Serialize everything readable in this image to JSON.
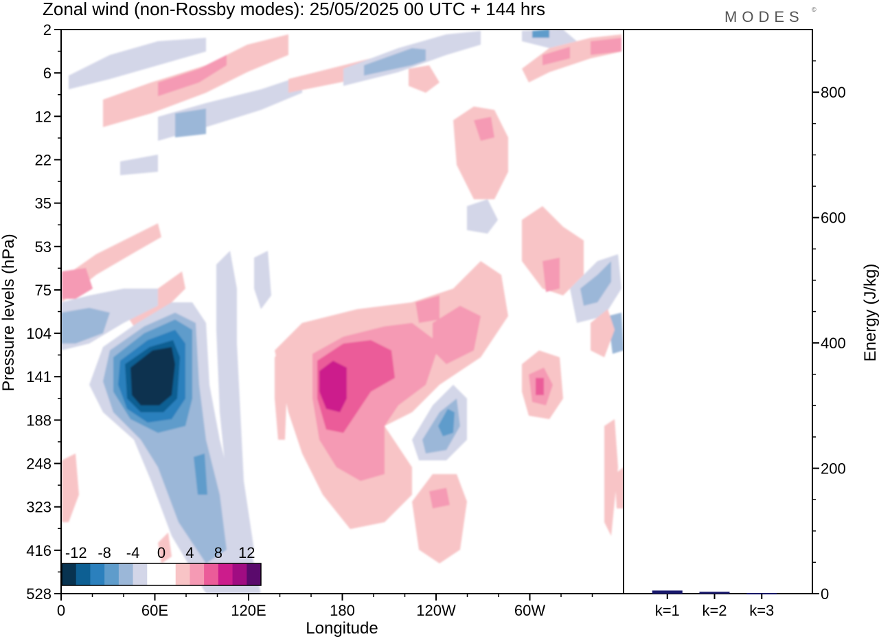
{
  "title": "Zonal wind (non-Rossby modes):  25/05/2025  00 UTC  + 144 hrs",
  "brand": "MODES",
  "brand_mark": "©",
  "chart_data": [
    {
      "type": "heatmap",
      "xlabel": "Longitude",
      "ylabel": "Pressure levels (hPa)",
      "x_ticks": [
        "0",
        "60E",
        "120E",
        "180",
        "120W",
        "60W"
      ],
      "y_ticks": [
        "2",
        "6",
        "12",
        "22",
        "35",
        "53",
        "75",
        "104",
        "141",
        "188",
        "248",
        "323",
        "416",
        "528"
      ],
      "colorbar": {
        "labels": [
          "-12",
          "-8",
          "-4",
          "0",
          "4",
          "8",
          "12"
        ],
        "colors": [
          "#083350",
          "#0d5f93",
          "#2b80bd",
          "#5f9ccb",
          "#9bb7d8",
          "#d3d6e8",
          "#ffffff",
          "#ffffff",
          "#f8c4c6",
          "#f59ab4",
          "#eb5c99",
          "#cc1c8c",
          "#a00c82",
          "#5a0a6c"
        ]
      },
      "features": [
        {
          "name": "negative-core-60E",
          "lon": 50,
          "level": 141,
          "value": -14
        },
        {
          "name": "positive-core-180",
          "lon": 178,
          "level": 141,
          "value": 10
        },
        {
          "name": "positive-core-75W",
          "lon": 290,
          "level": 141,
          "value": 8
        },
        {
          "name": "negative-core-125W",
          "lon": 233,
          "level": 188,
          "value": -8
        }
      ]
    },
    {
      "type": "bar",
      "categories": [
        "k=1",
        "k=2",
        "k=3"
      ],
      "values": [
        5,
        3,
        1
      ],
      "ylabel": "Energy (J/kg)",
      "ylim": [
        0,
        900
      ],
      "y_ticks": [
        "0",
        "200",
        "400",
        "600",
        "800"
      ],
      "bar_color": "#1a1a6e"
    }
  ]
}
